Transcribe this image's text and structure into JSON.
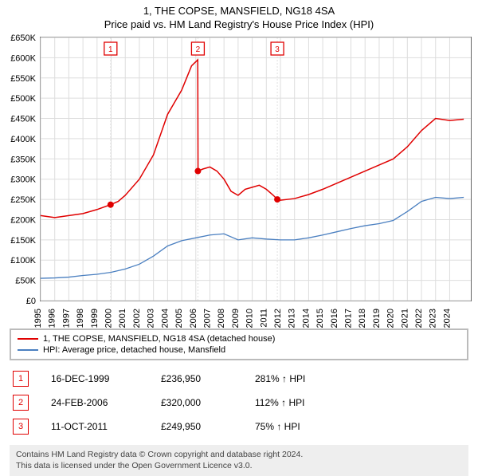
{
  "title_line1": "1, THE COPSE, MANSFIELD, NG18 4SA",
  "title_line2": "Price paid vs. HM Land Registry's House Price Index (HPI)",
  "chart": {
    "type": "line",
    "background_color": "#ffffff",
    "grid_color": "#dddddd",
    "axis_color": "#666666",
    "x_domain": [
      1995,
      2025.5
    ],
    "y_domain": [
      0,
      650000
    ],
    "y_tick_step": 50000,
    "y_tick_prefix": "£",
    "y_tick_suffix": "K",
    "x_ticks": [
      1995,
      1996,
      1997,
      1998,
      1999,
      2000,
      2001,
      2002,
      2003,
      2004,
      2005,
      2006,
      2007,
      2008,
      2009,
      2010,
      2011,
      2012,
      2013,
      2014,
      2015,
      2016,
      2017,
      2018,
      2019,
      2020,
      2021,
      2022,
      2023,
      2024
    ],
    "series": [
      {
        "id": "property",
        "label": "1, THE COPSE, MANSFIELD, NG18 4SA (detached house)",
        "color": "#e00000",
        "width": 1.5,
        "points": [
          [
            1995,
            210000
          ],
          [
            1996,
            205000
          ],
          [
            1997,
            210000
          ],
          [
            1998,
            215000
          ],
          [
            1999,
            225000
          ],
          [
            1999.96,
            236950
          ],
          [
            2000.5,
            245000
          ],
          [
            2001,
            260000
          ],
          [
            2002,
            300000
          ],
          [
            2003,
            360000
          ],
          [
            2004,
            460000
          ],
          [
            2005,
            520000
          ],
          [
            2005.7,
            580000
          ],
          [
            2006,
            590000
          ],
          [
            2006.14,
            595000
          ],
          [
            2006.16,
            320000
          ],
          [
            2006.5,
            325000
          ],
          [
            2007,
            330000
          ],
          [
            2007.5,
            320000
          ],
          [
            2008,
            300000
          ],
          [
            2008.5,
            270000
          ],
          [
            2009,
            260000
          ],
          [
            2009.5,
            275000
          ],
          [
            2010,
            280000
          ],
          [
            2010.5,
            285000
          ],
          [
            2011,
            275000
          ],
          [
            2011.5,
            260000
          ],
          [
            2011.78,
            249950
          ],
          [
            2012,
            248000
          ],
          [
            2013,
            252000
          ],
          [
            2014,
            262000
          ],
          [
            2015,
            275000
          ],
          [
            2016,
            290000
          ],
          [
            2017,
            305000
          ],
          [
            2018,
            320000
          ],
          [
            2019,
            335000
          ],
          [
            2020,
            350000
          ],
          [
            2021,
            380000
          ],
          [
            2022,
            420000
          ],
          [
            2023,
            450000
          ],
          [
            2024,
            445000
          ],
          [
            2025,
            448000
          ]
        ]
      },
      {
        "id": "hpi",
        "label": "HPI: Average price, detached house, Mansfield",
        "color": "#4a7fc0",
        "width": 1.3,
        "points": [
          [
            1995,
            55000
          ],
          [
            1996,
            56000
          ],
          [
            1997,
            58000
          ],
          [
            1998,
            62000
          ],
          [
            1999,
            65000
          ],
          [
            2000,
            70000
          ],
          [
            2001,
            78000
          ],
          [
            2002,
            90000
          ],
          [
            2003,
            110000
          ],
          [
            2004,
            135000
          ],
          [
            2005,
            148000
          ],
          [
            2006,
            155000
          ],
          [
            2007,
            162000
          ],
          [
            2008,
            165000
          ],
          [
            2009,
            150000
          ],
          [
            2010,
            155000
          ],
          [
            2011,
            152000
          ],
          [
            2012,
            150000
          ],
          [
            2013,
            150000
          ],
          [
            2014,
            155000
          ],
          [
            2015,
            162000
          ],
          [
            2016,
            170000
          ],
          [
            2017,
            178000
          ],
          [
            2018,
            185000
          ],
          [
            2019,
            190000
          ],
          [
            2020,
            198000
          ],
          [
            2021,
            220000
          ],
          [
            2022,
            245000
          ],
          [
            2023,
            255000
          ],
          [
            2024,
            252000
          ],
          [
            2025,
            255000
          ]
        ]
      }
    ],
    "markers": [
      {
        "n": "1",
        "x": 1999.96,
        "y": 236950
      },
      {
        "n": "2",
        "x": 2006.15,
        "y": 320000
      },
      {
        "n": "3",
        "x": 2011.78,
        "y": 249950
      }
    ]
  },
  "legend": {
    "items": [
      {
        "color": "#e00000",
        "text": "1, THE COPSE, MANSFIELD, NG18 4SA (detached house)"
      },
      {
        "color": "#4a7fc0",
        "text": "HPI: Average price, detached house, Mansfield"
      }
    ]
  },
  "sales": [
    {
      "n": "1",
      "date": "16-DEC-1999",
      "price": "£236,950",
      "pct": "281% ↑ HPI"
    },
    {
      "n": "2",
      "date": "24-FEB-2006",
      "price": "£320,000",
      "pct": "112% ↑ HPI"
    },
    {
      "n": "3",
      "date": "11-OCT-2011",
      "price": "£249,950",
      "pct": "75% ↑ HPI"
    }
  ],
  "footer_line1": "Contains HM Land Registry data © Crown copyright and database right 2024.",
  "footer_line2": "This data is licensed under the Open Government Licence v3.0.",
  "marker_box_color": "#e00000"
}
